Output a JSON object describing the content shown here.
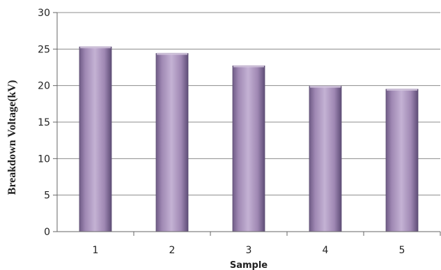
{
  "chart_data": {
    "type": "bar",
    "title": "",
    "xlabel": "Sample",
    "ylabel": "Breakdown Voltage(kV)",
    "categories": [
      "1",
      "2",
      "3",
      "4",
      "5"
    ],
    "values": [
      25.3,
      24.4,
      22.7,
      19.9,
      19.5
    ],
    "ylim": [
      0,
      30
    ],
    "yticks": [
      "0",
      "5",
      "10",
      "15",
      "20",
      "25",
      "30"
    ],
    "grid": true,
    "legend": "none",
    "colors": {
      "bar": "#9f88b3",
      "bar_edge": "#5d4f73",
      "grid": "#8c8c8c",
      "axis": "#666666"
    }
  }
}
